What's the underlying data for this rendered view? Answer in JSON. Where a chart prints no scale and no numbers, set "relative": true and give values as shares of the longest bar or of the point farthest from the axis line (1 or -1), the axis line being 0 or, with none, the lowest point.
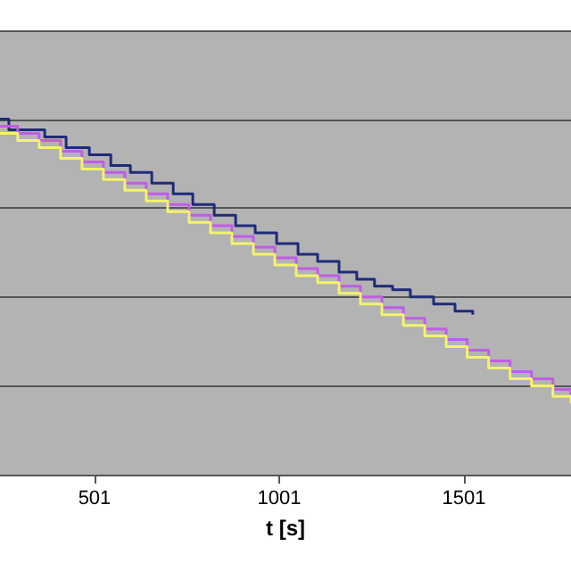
{
  "chart_data": {
    "type": "step",
    "xlabel": "t [s]",
    "relative": true,
    "xlim": [
      245,
      1791
    ],
    "xticks": [
      501,
      1001,
      1501
    ],
    "grid": "y",
    "marker": "none",
    "line_style": "solid",
    "series": [
      {
        "color": "#1f2a7a",
        "x": [
          245,
          269,
          366,
          424,
          487,
          545,
          598,
          656,
          714,
          767,
          825,
          883,
          936,
          994,
          1052,
          1105,
          1163,
          1211,
          1259,
          1308,
          1356,
          1419,
          1477,
          1525
        ],
        "values": [
          1.0,
          0.97,
          0.95,
          0.92,
          0.9,
          0.87,
          0.85,
          0.82,
          0.79,
          0.76,
          0.73,
          0.7,
          0.68,
          0.65,
          0.62,
          0.6,
          0.57,
          0.55,
          0.53,
          0.52,
          0.5,
          0.48,
          0.46,
          0.45
        ]
      },
      {
        "color": "#c05ce8",
        "x": [
          245,
          293,
          351,
          409,
          467,
          525,
          583,
          641,
          699,
          757,
          815,
          873,
          931,
          989,
          1047,
          1105,
          1163,
          1221,
          1279,
          1337,
          1395,
          1453,
          1510,
          1568,
          1626,
          1684,
          1742,
          1791
        ],
        "values": [
          0.98,
          0.96,
          0.94,
          0.91,
          0.88,
          0.85,
          0.82,
          0.79,
          0.76,
          0.73,
          0.7,
          0.67,
          0.64,
          0.61,
          0.58,
          0.56,
          0.53,
          0.5,
          0.47,
          0.44,
          0.41,
          0.38,
          0.35,
          0.32,
          0.29,
          0.27,
          0.24,
          0.22
        ]
      },
      {
        "color": "#f4f46a",
        "x": [
          245,
          293,
          351,
          409,
          467,
          525,
          583,
          641,
          699,
          757,
          815,
          873,
          931,
          989,
          1047,
          1105,
          1163,
          1221,
          1279,
          1337,
          1395,
          1453,
          1510,
          1568,
          1626,
          1684,
          1742,
          1791
        ],
        "values": [
          0.96,
          0.94,
          0.92,
          0.89,
          0.86,
          0.83,
          0.8,
          0.77,
          0.74,
          0.71,
          0.68,
          0.65,
          0.62,
          0.59,
          0.56,
          0.54,
          0.51,
          0.48,
          0.45,
          0.42,
          0.39,
          0.36,
          0.33,
          0.3,
          0.27,
          0.25,
          0.22,
          0.2
        ]
      }
    ]
  }
}
